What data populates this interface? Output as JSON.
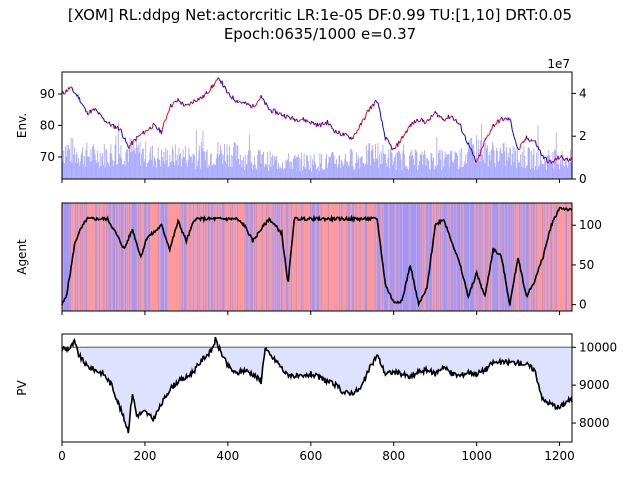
{
  "title": {
    "line1": "[XOM] RL:ddpg Net:actorcritic LR:1e-05 DF:0.99 TU:[1,10] DRT:0.05",
    "line2": "Epoch:0635/1000 e=0.37"
  },
  "chart_data": [
    {
      "type": "line",
      "panel": "env",
      "ylabel": "Env.",
      "xlim": [
        0,
        1230
      ],
      "ylim": [
        63,
        97
      ],
      "yticks": [
        70,
        80,
        90
      ],
      "price_color_up": "#ff0000",
      "price_color_down": "#0000ff",
      "price": {
        "x": [
          0,
          20,
          40,
          60,
          80,
          100,
          120,
          140,
          160,
          180,
          200,
          220,
          240,
          260,
          280,
          300,
          320,
          340,
          360,
          380,
          400,
          420,
          440,
          460,
          480,
          500,
          520,
          540,
          560,
          580,
          600,
          620,
          640,
          660,
          680,
          700,
          720,
          740,
          760,
          780,
          800,
          820,
          840,
          860,
          880,
          900,
          920,
          940,
          960,
          980,
          1000,
          1020,
          1040,
          1060,
          1080,
          1100,
          1120,
          1140,
          1160,
          1180,
          1200,
          1220,
          1230
        ],
        "y": [
          90,
          92,
          89,
          84,
          85,
          82,
          80,
          79,
          73,
          76,
          78,
          80,
          78,
          86,
          88,
          86,
          88,
          89,
          92,
          95,
          90,
          88,
          87,
          86,
          89,
          85,
          84,
          83,
          82,
          82,
          81,
          80,
          81,
          78,
          77,
          76,
          80,
          85,
          88,
          76,
          72,
          76,
          80,
          82,
          81,
          84,
          82,
          83,
          80,
          74,
          68,
          75,
          80,
          82,
          82,
          72,
          76,
          75,
          70,
          68,
          70,
          69,
          70
        ]
      },
      "volume": {
        "secondary_axis": "right",
        "scale_label": "1e7",
        "ylim": [
          0,
          5
        ],
        "yticks": [
          0,
          2,
          4
        ],
        "bar_color": "#aaaaff",
        "x": [
          0,
          40,
          80,
          120,
          160,
          200,
          240,
          280,
          320,
          360,
          400,
          440,
          480,
          520,
          560,
          600,
          640,
          680,
          720,
          760,
          800,
          840,
          880,
          920,
          960,
          1000,
          1040,
          1080,
          1120,
          1160,
          1200,
          1230
        ],
        "values": [
          1.6,
          1.3,
          1.2,
          1.3,
          1.5,
          1.3,
          1.1,
          1.2,
          1.2,
          1.3,
          1.4,
          1.1,
          1.0,
          0.9,
          0.9,
          0.9,
          0.9,
          1.0,
          1.1,
          1.3,
          1.0,
          1.0,
          1.0,
          1.0,
          1.0,
          1.6,
          1.3,
          1.2,
          1.1,
          1.0,
          1.0,
          1.0
        ]
      }
    },
    {
      "type": "line",
      "panel": "agent",
      "ylabel": "Agent",
      "xlim": [
        0,
        1230
      ],
      "ylim": [
        -8,
        128
      ],
      "yticks": [
        0,
        50,
        100
      ],
      "background_colors": {
        "buy": "#ff9999",
        "sell": "#9999ff"
      },
      "position": {
        "x": [
          0,
          10,
          20,
          30,
          40,
          60,
          90,
          110,
          130,
          150,
          170,
          190,
          205,
          220,
          240,
          260,
          280,
          300,
          320,
          340,
          360,
          380,
          400,
          420,
          440,
          460,
          480,
          500,
          530,
          545,
          560,
          590,
          620,
          650,
          680,
          700,
          720,
          740,
          760,
          780,
          800,
          820,
          840,
          860,
          880,
          900,
          920,
          940,
          960,
          980,
          1000,
          1020,
          1040,
          1060,
          1080,
          1100,
          1120,
          1140,
          1160,
          1180,
          1200,
          1220,
          1230
        ],
        "y": [
          0,
          10,
          40,
          75,
          90,
          108,
          108,
          108,
          90,
          70,
          95,
          60,
          85,
          90,
          100,
          70,
          105,
          80,
          108,
          108,
          108,
          108,
          108,
          108,
          100,
          80,
          95,
          108,
          90,
          25,
          108,
          108,
          108,
          108,
          108,
          108,
          108,
          108,
          108,
          25,
          3,
          5,
          50,
          0,
          20,
          100,
          108,
          80,
          50,
          10,
          40,
          10,
          70,
          60,
          0,
          60,
          10,
          30,
          60,
          100,
          122,
          120,
          118
        ]
      }
    },
    {
      "type": "area",
      "panel": "pv",
      "ylabel": "PV",
      "xlim": [
        0,
        1230
      ],
      "ylim": [
        7500,
        10350
      ],
      "yticks": [
        8000,
        9000,
        10000
      ],
      "xticks": [
        0,
        200,
        400,
        600,
        800,
        1000,
        1200
      ],
      "baseline": 10000,
      "fill_color": "#e0e0ff",
      "pv": {
        "x": [
          0,
          10,
          20,
          30,
          40,
          60,
          80,
          100,
          120,
          140,
          160,
          170,
          180,
          200,
          220,
          240,
          260,
          280,
          300,
          320,
          340,
          360,
          370,
          380,
          400,
          420,
          440,
          460,
          480,
          490,
          500,
          520,
          540,
          560,
          580,
          600,
          620,
          640,
          660,
          680,
          700,
          720,
          740,
          760,
          780,
          800,
          820,
          840,
          860,
          880,
          900,
          920,
          940,
          960,
          980,
          1000,
          1020,
          1040,
          1060,
          1080,
          1100,
          1120,
          1140,
          1160,
          1180,
          1200,
          1220,
          1230
        ],
        "y": [
          10000,
          9950,
          9980,
          10150,
          9800,
          9500,
          9400,
          9300,
          9000,
          8400,
          7800,
          8800,
          8200,
          8300,
          8100,
          8500,
          8900,
          9100,
          9200,
          9400,
          9700,
          9900,
          10200,
          9950,
          9500,
          9300,
          9400,
          9300,
          9100,
          10000,
          9800,
          9600,
          9300,
          9250,
          9200,
          9300,
          9200,
          9100,
          9000,
          8800,
          8800,
          8900,
          9400,
          9800,
          9300,
          9350,
          9300,
          9200,
          9350,
          9400,
          9300,
          9500,
          9300,
          9250,
          9350,
          9300,
          9400,
          9600,
          9600,
          9600,
          9600,
          9550,
          9400,
          8600,
          8500,
          8400,
          8600,
          8600
        ]
      }
    }
  ]
}
